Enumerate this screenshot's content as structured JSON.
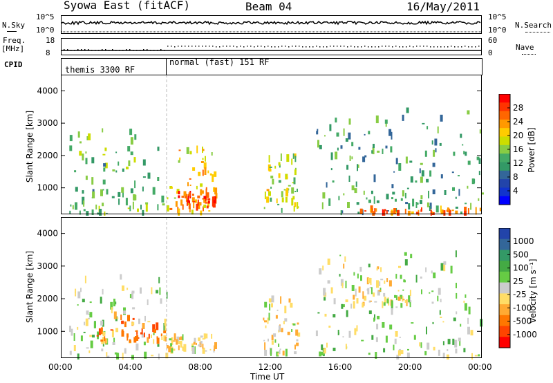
{
  "header": {
    "station": "Syowa East (fitACF)",
    "beam": "Beam 04",
    "date": "16/May/2011"
  },
  "noise_panel": {
    "left_label": "N.Sky",
    "left_ticks": [
      "10^5",
      "10^0"
    ],
    "right_ticks": [
      "10^5",
      "10^0"
    ],
    "right_label": "N.Search"
  },
  "freq_panel": {
    "left_label_line1": "Freq.",
    "left_label_line2": "[MHz]",
    "left_ticks": [
      "18",
      "8"
    ],
    "right_ticks": [
      "60",
      "0"
    ],
    "right_label": "Nave"
  },
  "cpid_panel": {
    "label": "CPID",
    "segments": [
      {
        "name": "themis 3300 RF"
      },
      {
        "name": "normal (fast) 151 RF"
      }
    ]
  },
  "x_axis": {
    "ticks": [
      "00:00",
      "04:00",
      "08:00",
      "12:00",
      "16:00",
      "20:00",
      "00:00"
    ],
    "label": "Time UT"
  },
  "range_axis": {
    "label": "Slant Range [km]",
    "ticks": [
      "4000",
      "3000",
      "2000",
      "1000"
    ]
  },
  "power_scale": {
    "label": "Power [dB]",
    "ticks": [
      "28",
      "24",
      "20",
      "16",
      "12",
      "8",
      "4"
    ],
    "colors": [
      "#ff0000",
      "#ff3300",
      "#ff6600",
      "#ff9900",
      "#ffcc00",
      "#ccdd00",
      "#88cc44",
      "#44aa66",
      "#339966",
      "#336699",
      "#2244aa",
      "#1133cc",
      "#0000ff"
    ]
  },
  "velocity_scale": {
    "label": "Velocity [m s⁻¹]",
    "ticks": [
      "1000",
      "500",
      "100",
      "25",
      "-25",
      "-100",
      "-500",
      "-1000"
    ],
    "colors": [
      "#2244aa",
      "#336699",
      "#339966",
      "#44aa44",
      "#66cc44",
      "#cccccc",
      "#ffdd66",
      "#ffaa33",
      "#ff7700",
      "#ff4400",
      "#ff0000"
    ]
  },
  "chart_data": [
    {
      "type": "heatmap",
      "title": "Power",
      "xlabel": "Time UT",
      "ylabel": "Slant Range [km]",
      "xlim": [
        "00:00",
        "24:00"
      ],
      "ylim": [
        180,
        4500
      ],
      "colorbar": {
        "label": "Power [dB]",
        "range": [
          0,
          32
        ]
      },
      "regions": [
        {
          "t_start": 0.3,
          "t_end": 6.0,
          "r_min": 200,
          "r_max": 2800,
          "level_dB": 14
        },
        {
          "t_start": 6.0,
          "t_end": 8.8,
          "r_min": 200,
          "r_max": 2200,
          "level_dB": 22
        },
        {
          "t_start": 6.5,
          "t_end": 8.8,
          "r_min": 400,
          "r_max": 900,
          "level_dB": 28
        },
        {
          "t_start": 11.5,
          "t_end": 13.5,
          "r_min": 300,
          "r_max": 2000,
          "level_dB": 18
        },
        {
          "t_start": 14.5,
          "t_end": 24.0,
          "r_min": 200,
          "r_max": 3400,
          "level_dB": 12
        },
        {
          "t_start": 17.0,
          "t_end": 24.0,
          "r_min": 200,
          "r_max": 350,
          "level_dB": 26
        }
      ]
    },
    {
      "type": "heatmap",
      "title": "Velocity",
      "xlabel": "Time UT",
      "ylabel": "Slant Range [km]",
      "xlim": [
        "00:00",
        "24:00"
      ],
      "ylim": [
        180,
        4500
      ],
      "colorbar": {
        "label": "Velocity [m s⁻¹]",
        "range": [
          -1000,
          1000
        ]
      },
      "regions": [
        {
          "t_start": 0.3,
          "t_end": 6.0,
          "r_min": 200,
          "r_max": 2800,
          "velocity": 100
        },
        {
          "t_start": 2.0,
          "t_end": 6.0,
          "r_min": 700,
          "r_max": 1500,
          "velocity": -500
        },
        {
          "t_start": 6.0,
          "t_end": 8.8,
          "r_min": 400,
          "r_max": 900,
          "velocity": -100
        },
        {
          "t_start": 11.5,
          "t_end": 13.5,
          "r_min": 300,
          "r_max": 2000,
          "velocity": -100
        },
        {
          "t_start": 14.5,
          "t_end": 24.0,
          "r_min": 200,
          "r_max": 3400,
          "velocity": 100
        },
        {
          "t_start": 16.0,
          "t_end": 20.0,
          "r_min": 1800,
          "r_max": 3000,
          "velocity": -100
        }
      ]
    }
  ]
}
